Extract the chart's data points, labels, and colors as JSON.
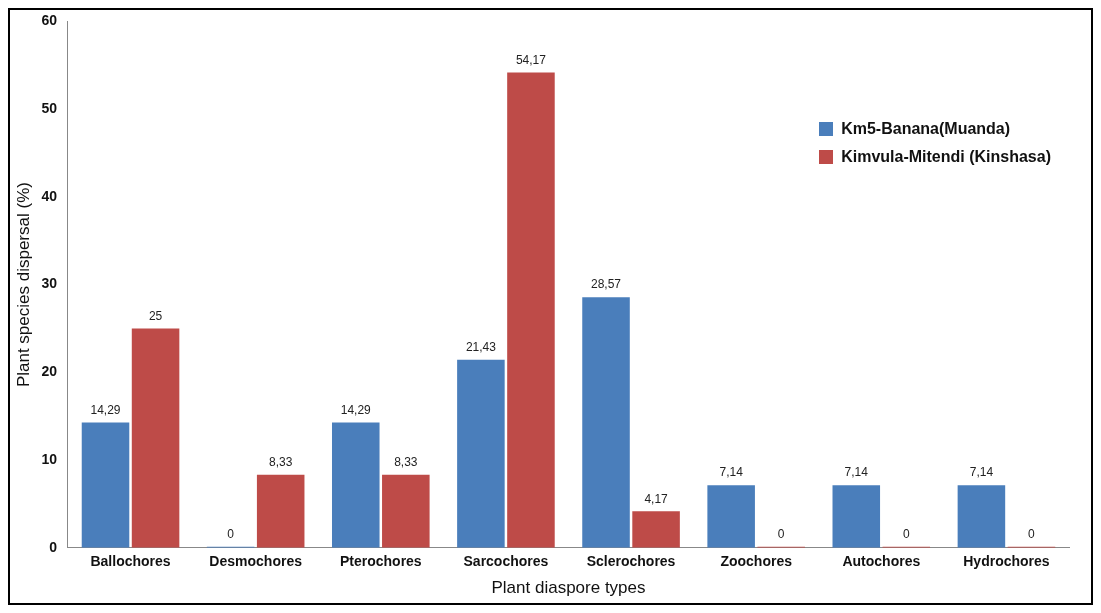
{
  "chart_data": {
    "type": "bar",
    "xlabel": "Plant diaspore types",
    "ylabel": "Plant species dispersal (%)",
    "categories": [
      "Ballochores",
      "Desmochores",
      "Pterochores",
      "Sarcochores",
      "Sclerochores",
      "Zoochores",
      "Autochores",
      "Hydrochores"
    ],
    "series": [
      {
        "name": "Km5-Banana(Muanda)",
        "color": "#4a7ebb",
        "values": [
          14.29,
          0,
          14.29,
          21.43,
          28.57,
          7.14,
          7.14,
          7.14
        ],
        "value_labels": [
          "14,29",
          "0",
          "14,29",
          "21,43",
          "28,57",
          "7,14",
          "7,14",
          "7,14"
        ]
      },
      {
        "name": "Kimvula-Mitendi (Kinshasa)",
        "color": "#be4b48",
        "values": [
          25,
          8.33,
          8.33,
          54.17,
          4.17,
          0,
          0,
          0
        ],
        "value_labels": [
          "25",
          "8,33",
          "8,33",
          "54,17",
          "4,17",
          "0",
          "0",
          "0"
        ]
      }
    ],
    "ylim": [
      0,
      60
    ],
    "yticks": [
      0,
      10,
      20,
      30,
      40,
      50,
      60
    ],
    "grid": false,
    "legend": "top right"
  }
}
